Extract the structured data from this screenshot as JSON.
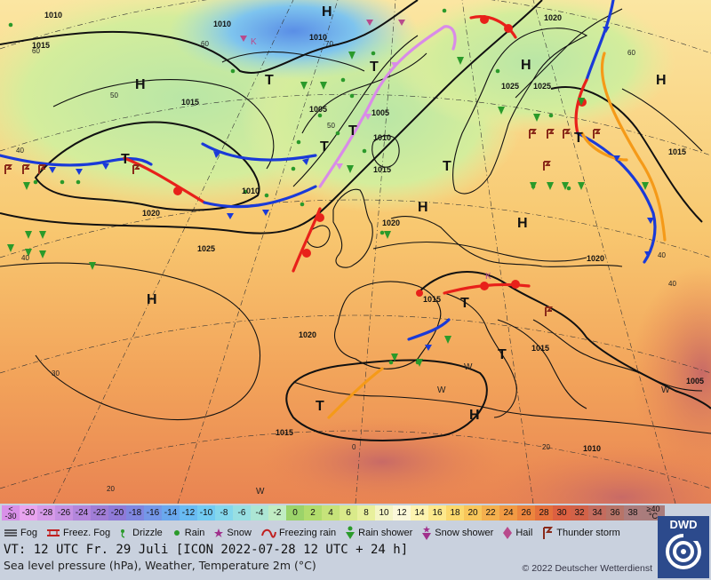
{
  "map": {
    "pressure_labels": [
      "1010",
      "1015",
      "1010",
      "1010",
      "1020",
      "1005",
      "1005",
      "1010",
      "1015",
      "1010",
      "1020",
      "1025",
      "1020",
      "1025",
      "1020",
      "1015",
      "1015",
      "1015",
      "1020",
      "1015",
      "1010",
      "1005",
      "1025",
      "1015"
    ],
    "temp_labels": [
      "60",
      "50",
      "40",
      "40",
      "30",
      "20",
      "0",
      "20",
      "60",
      "60",
      "50",
      "70",
      "40",
      "40"
    ],
    "high_label": "H",
    "low_label": "T",
    "storm_letter": "K",
    "warm_letter": "W"
  },
  "scale": {
    "min_label": "< -30",
    "max_label": "≥40 °C",
    "values": [
      "-30",
      "-28",
      "-26",
      "-24",
      "-22",
      "-20",
      "-18",
      "-16",
      "-14",
      "-12",
      "-10",
      "-8",
      "-6",
      "-4",
      "-2",
      "0",
      "2",
      "4",
      "6",
      "8",
      "10",
      "12",
      "14",
      "16",
      "18",
      "20",
      "22",
      "24",
      "26",
      "28",
      "30",
      "32",
      "34",
      "36",
      "38"
    ],
    "colors": [
      "#e9a4ef",
      "#d69ae8",
      "#c590e2",
      "#b386dc",
      "#a07dd6",
      "#8f7ad8",
      "#7f86e0",
      "#7497e8",
      "#6aa8ee",
      "#69bbf2",
      "#72cbf2",
      "#84d7ec",
      "#98dfe2",
      "#ace6d4",
      "#c0ecc2",
      "#9bd36a",
      "#b1dc6c",
      "#c6e37a",
      "#d9ea8a",
      "#e8f09c",
      "#f4f5c4",
      "#fbf8d9",
      "#fdf3b0",
      "#fde88c",
      "#fbd86c",
      "#f8c65a",
      "#f4b04e",
      "#f19a44",
      "#ec853e",
      "#e4703c",
      "#dc6041",
      "#d26248",
      "#c46c5e",
      "#b77468",
      "#ab7c7c"
    ]
  },
  "weather_legend": [
    {
      "icon": "fog-icon",
      "label": "Fog"
    },
    {
      "icon": "freezing-fog-icon",
      "label": "Freez. Fog"
    },
    {
      "icon": "drizzle-icon",
      "label": "Drizzle"
    },
    {
      "icon": "rain-icon",
      "label": "Rain"
    },
    {
      "icon": "snow-icon",
      "label": "Snow"
    },
    {
      "icon": "freezing-rain-icon",
      "label": "Freezing rain"
    },
    {
      "icon": "rain-shower-icon",
      "label": "Rain shower"
    },
    {
      "icon": "snow-shower-icon",
      "label": "Snow shower"
    },
    {
      "icon": "hail-icon",
      "label": "Hail"
    },
    {
      "icon": "thunderstorm-icon",
      "label": "Thunder storm"
    }
  ],
  "footer": {
    "valid_time": "VT: 12 UTC Fr.  29 Juli [ICON 2022-07-28  12 UTC + 24 h]",
    "description": "Sea level pressure (hPa), Weather, Temperature 2m (°C)",
    "copyright": "© 2022 Deutscher Wetterdienst",
    "logo": "DWD"
  },
  "colors": {
    "warm_front": "#e8211a",
    "cold_front": "#1a3ad8",
    "occluded_front": "#d98be8",
    "convergence_line": "#f59a18",
    "legend_background": "#c9d1de"
  }
}
